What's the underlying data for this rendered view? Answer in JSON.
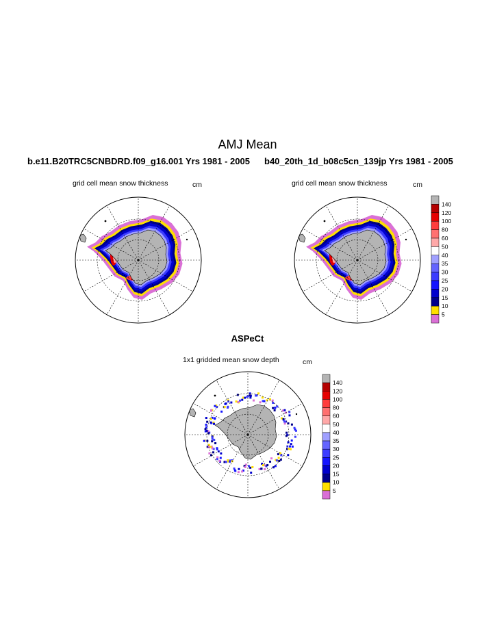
{
  "figure": {
    "main_title": "AMJ Mean",
    "left_run": "b.e11.B20TRC5CNBDRD.f09_g16.001  Yrs 1981 - 2005",
    "right_run": "b40_20th_1d_b08c5cn_139jp  Yrs 1981 - 2005",
    "bottom_title": "ASPeCt"
  },
  "colors": {
    "ocean": "#ffffff",
    "land": "#b4b4b4",
    "grid": "#000000"
  },
  "chart_data": [
    {
      "type": "heatmap",
      "projection": "south-polar-stereographic",
      "title": "grid cell mean snow thickness",
      "units": "cm",
      "variable": "snow thickness",
      "legend": "none"
    },
    {
      "type": "heatmap",
      "projection": "south-polar-stereographic",
      "title": "grid cell mean snow thickness",
      "units": "cm",
      "variable": "snow thickness",
      "legend": "right"
    },
    {
      "type": "heatmap",
      "projection": "south-polar-stereographic",
      "title": "1x1 gridded mean snow depth",
      "units": "cm",
      "variable": "snow depth",
      "legend": "right"
    }
  ],
  "colorbar": {
    "units": "cm",
    "levels": [
      "5",
      "10",
      "15",
      "20",
      "25",
      "30",
      "35",
      "40",
      "50",
      "60",
      "80",
      "100",
      "120",
      "140"
    ],
    "colors": [
      "#da70d6",
      "#ffe000",
      "#00008b",
      "#0000cd",
      "#1414ff",
      "#3c3cff",
      "#6464ff",
      "#a0a0ff",
      "#ffffff",
      "#ffa8a8",
      "#ff7070",
      "#ff3c3c",
      "#e60000",
      "#b40000",
      "#b4b4b4"
    ]
  }
}
